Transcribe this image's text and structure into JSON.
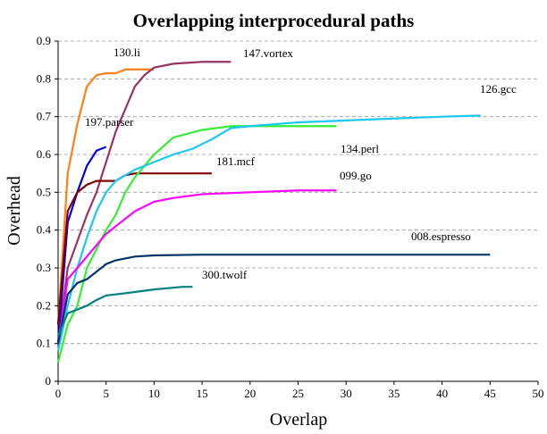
{
  "chart_data": {
    "type": "line",
    "title": "Overlapping interprocedural paths",
    "x_label": "Overlap",
    "y_label": "Overhead",
    "xlim": [
      0,
      50
    ],
    "xticks": [
      0,
      5,
      10,
      15,
      20,
      25,
      30,
      35,
      40,
      45,
      50
    ],
    "ylim": [
      0,
      0.9
    ],
    "yticks": [
      0,
      0.1,
      0.2,
      0.3,
      0.4,
      0.5,
      0.6,
      0.7,
      0.8,
      0.9
    ],
    "grid": true,
    "series": [
      {
        "name": "130.li",
        "color": "#ff7f1a",
        "x": [
          0,
          1,
          2,
          3,
          4,
          5,
          6,
          7,
          8,
          9,
          10
        ],
        "values": [
          0.15,
          0.55,
          0.68,
          0.78,
          0.81,
          0.815,
          0.815,
          0.825,
          0.825,
          0.825,
          0.825
        ]
      },
      {
        "name": "147.vortex",
        "color": "#993366",
        "x": [
          0,
          1,
          2,
          3,
          4,
          5,
          6,
          7,
          8,
          9,
          10,
          12,
          15,
          18
        ],
        "values": [
          0.1,
          0.3,
          0.37,
          0.44,
          0.5,
          0.58,
          0.66,
          0.72,
          0.78,
          0.81,
          0.83,
          0.84,
          0.845,
          0.845
        ]
      },
      {
        "name": "197.parser",
        "color": "#0000e6",
        "x": [
          0,
          1,
          2,
          3,
          4,
          5
        ],
        "values": [
          0.1,
          0.42,
          0.5,
          0.57,
          0.61,
          0.62
        ]
      },
      {
        "name": "181.mcf",
        "color": "#800000",
        "x": [
          0,
          1,
          2,
          3,
          4,
          5,
          6,
          7,
          8,
          10,
          16
        ],
        "values": [
          0.15,
          0.45,
          0.5,
          0.52,
          0.53,
          0.53,
          0.53,
          0.545,
          0.55,
          0.55,
          0.55
        ]
      },
      {
        "name": "134.perl",
        "color": "#33ee33",
        "x": [
          0,
          1,
          2,
          3,
          4,
          5,
          6,
          7,
          8,
          10,
          12,
          15,
          18,
          20,
          29
        ],
        "values": [
          0.05,
          0.15,
          0.2,
          0.3,
          0.35,
          0.4,
          0.44,
          0.5,
          0.54,
          0.6,
          0.645,
          0.665,
          0.675,
          0.675,
          0.675
        ]
      },
      {
        "name": "126.gcc",
        "color": "#1ac8f0",
        "x": [
          0,
          1,
          2,
          3,
          4,
          5,
          6,
          8,
          10,
          12,
          14,
          16,
          18,
          20,
          25,
          30,
          35,
          40,
          44
        ],
        "values": [
          0.08,
          0.2,
          0.3,
          0.38,
          0.45,
          0.5,
          0.53,
          0.56,
          0.58,
          0.6,
          0.615,
          0.64,
          0.67,
          0.675,
          0.685,
          0.69,
          0.695,
          0.7,
          0.703
        ]
      },
      {
        "name": "099.go",
        "color": "#ff00ff",
        "x": [
          0,
          1,
          2,
          3,
          4,
          5,
          6,
          8,
          10,
          12,
          15,
          20,
          25,
          29
        ],
        "values": [
          0.1,
          0.27,
          0.3,
          0.33,
          0.36,
          0.39,
          0.41,
          0.45,
          0.475,
          0.485,
          0.495,
          0.5,
          0.505,
          0.505
        ]
      },
      {
        "name": "008.espresso",
        "color": "#003366",
        "x": [
          0,
          1,
          2,
          3,
          4,
          5,
          6,
          8,
          10,
          15,
          45
        ],
        "values": [
          0.1,
          0.23,
          0.26,
          0.27,
          0.29,
          0.31,
          0.32,
          0.33,
          0.333,
          0.335,
          0.335
        ]
      },
      {
        "name": "300.twolf",
        "color": "#008080",
        "x": [
          0,
          1,
          2,
          3,
          4,
          5,
          7,
          10,
          13,
          14
        ],
        "values": [
          0.12,
          0.18,
          0.19,
          0.2,
          0.215,
          0.227,
          0.233,
          0.243,
          0.25,
          0.25
        ]
      }
    ]
  }
}
